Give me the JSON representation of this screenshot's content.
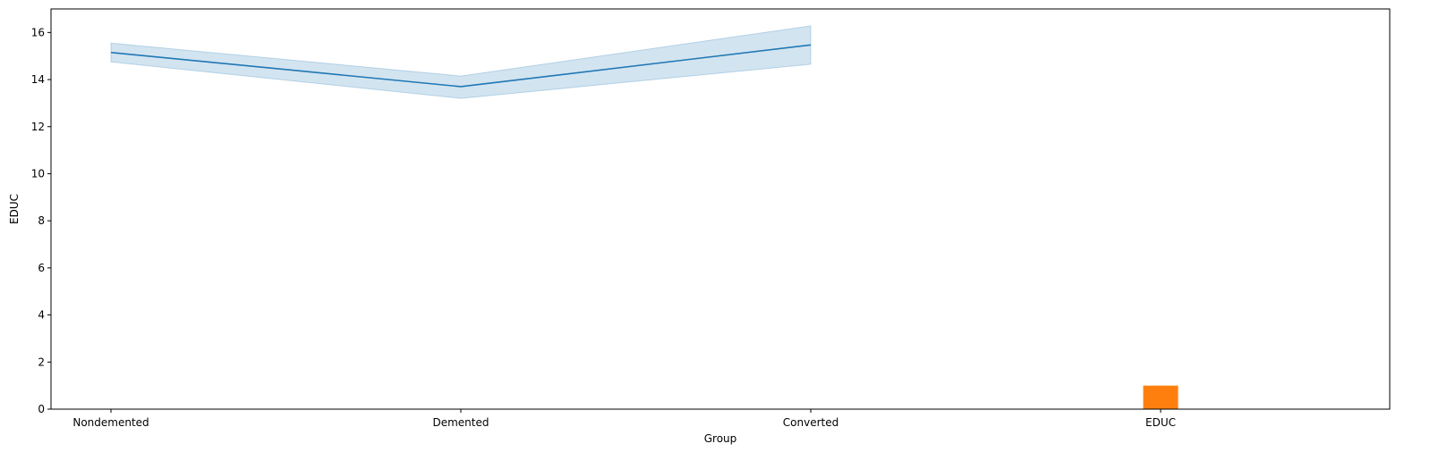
{
  "chart_data": {
    "type": "line",
    "xlabel": "Group",
    "ylabel": "EDUC",
    "categories": [
      "Nondemented",
      "Demented",
      "Converted",
      "EDUC"
    ],
    "ylim": [
      0,
      17
    ],
    "yticks": [
      0,
      2,
      4,
      6,
      8,
      10,
      12,
      14,
      16
    ],
    "grid": false,
    "series": [
      {
        "kind": "line",
        "x": [
          "Nondemented",
          "Demented",
          "Converted"
        ],
        "values": [
          15.15,
          13.7,
          15.47
        ],
        "ci_low": [
          14.75,
          13.2,
          14.65
        ],
        "ci_high": [
          15.55,
          14.15,
          16.28
        ],
        "color": "#1f77b4"
      },
      {
        "kind": "bar",
        "x": [
          "EDUC"
        ],
        "values": [
          1
        ],
        "color": "#ff7f0e"
      }
    ]
  }
}
